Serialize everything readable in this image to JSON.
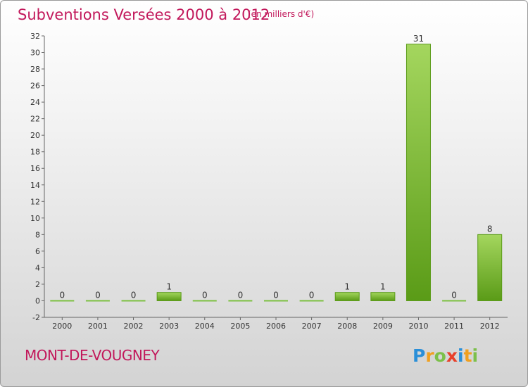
{
  "title": "Subventions Versées 2000 à 2012",
  "unit_note": "(en milliers d'€)",
  "commune": "MONT-DE-VOUGNEY",
  "logo": {
    "letters": [
      "P",
      "r",
      "o",
      "x",
      "i",
      "t",
      "i"
    ],
    "colors": [
      "#2a8fd8",
      "#f0a020",
      "#7cc04a",
      "#e8402a",
      "#2a8fd8",
      "#f0a020",
      "#7cc04a"
    ]
  },
  "chart_data": {
    "type": "bar",
    "categories": [
      "2000",
      "2001",
      "2002",
      "2003",
      "2004",
      "2005",
      "2006",
      "2007",
      "2008",
      "2009",
      "2010",
      "2011",
      "2012"
    ],
    "values": [
      0,
      0,
      0,
      1,
      0,
      0,
      0,
      0,
      1,
      1,
      31,
      0,
      8
    ],
    "data_labels": [
      "0",
      "0",
      "0",
      "1",
      "0",
      "0",
      "0",
      "0",
      "1",
      "1",
      "31",
      "0",
      "8"
    ],
    "ylim": [
      -2,
      32
    ],
    "yticks": [
      -2,
      0,
      2,
      4,
      6,
      8,
      10,
      12,
      14,
      16,
      18,
      20,
      22,
      24,
      26,
      28,
      30,
      32
    ],
    "grid": false,
    "bar_color": "#72b62a"
  }
}
